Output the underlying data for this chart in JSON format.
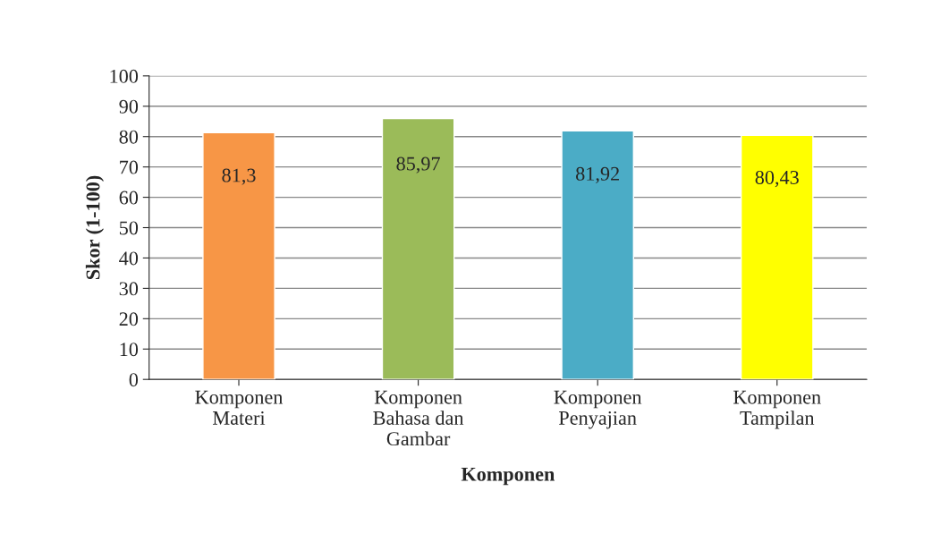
{
  "chart_data": {
    "type": "bar",
    "xlabel": "Komponen",
    "ylabel": "Skor (1-100)",
    "categories": [
      "Komponen\nMateri",
      "Komponen\nBahasa dan\nGambar",
      "Komponen\nPenyajian",
      "Komponen\nTampilan"
    ],
    "values": [
      81.3,
      85.97,
      81.92,
      80.43
    ],
    "colors": [
      "#f79646",
      "#9bbb59",
      "#4bacc6",
      "#ffff00"
    ],
    "value_labels": [
      "81,3",
      "85,97",
      "81,92",
      "80,43"
    ],
    "ylim": [
      0,
      100
    ],
    "yticks": [
      0,
      10,
      20,
      30,
      40,
      50,
      60,
      70,
      80,
      90,
      100
    ],
    "grid": "y",
    "legend": false
  }
}
